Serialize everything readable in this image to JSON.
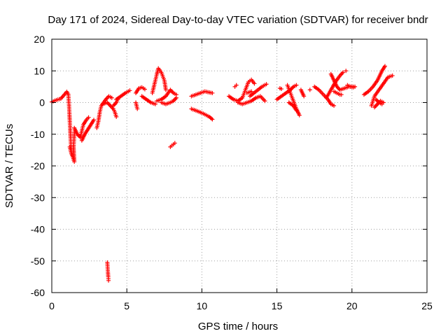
{
  "chart_data": {
    "type": "scatter",
    "title": "Day 171 of 2024, Sidereal Day-to-day VTEC variation (SDTVAR) for receiver bndr",
    "xlabel": "GPS time / hours",
    "ylabel": "SDTVAR / TECUs",
    "xlim": [
      0,
      25
    ],
    "ylim": [
      -60,
      20
    ],
    "xticks": [
      0,
      5,
      10,
      15,
      20,
      25
    ],
    "yticks": [
      -60,
      -50,
      -40,
      -30,
      -20,
      -10,
      0,
      10,
      20
    ],
    "grid": true,
    "marker": "+",
    "series": [
      {
        "name": "SDTVAR",
        "color": "#ff0000",
        "tracks": [
          [
            [
              0.0,
              0.2
            ],
            [
              0.3,
              0.8
            ],
            [
              0.6,
              1.2
            ],
            [
              0.8,
              2.3
            ],
            [
              1.0,
              3.4
            ],
            [
              1.1,
              2.6
            ],
            [
              1.15,
              -1.0
            ],
            [
              1.2,
              -6.0
            ],
            [
              1.25,
              -11.0
            ],
            [
              1.3,
              -15.5
            ]
          ],
          [
            [
              1.2,
              -14.0
            ],
            [
              1.3,
              -16.0
            ],
            [
              1.4,
              -17.2
            ],
            [
              1.5,
              -18.7
            ],
            [
              1.45,
              -14.0
            ],
            [
              1.5,
              -10.0
            ],
            [
              1.55,
              -9.0
            ]
          ],
          [
            [
              1.5,
              -8.0
            ],
            [
              1.7,
              -10.0
            ],
            [
              1.9,
              -11.0
            ],
            [
              2.0,
              -9.0
            ],
            [
              2.1,
              -7.0
            ],
            [
              2.3,
              -5.5
            ],
            [
              2.45,
              -4.7
            ]
          ],
          [
            [
              2.0,
              -12.0
            ],
            [
              2.2,
              -10.0
            ],
            [
              2.4,
              -8.5
            ],
            [
              2.6,
              -7.0
            ],
            [
              2.8,
              -5.5
            ]
          ],
          [
            [
              3.0,
              -8.0
            ],
            [
              3.1,
              -6.0
            ],
            [
              3.2,
              -3.0
            ],
            [
              3.3,
              -1.0
            ],
            [
              3.6,
              1.0
            ],
            [
              3.8,
              2.0
            ],
            [
              4.0,
              1.5
            ]
          ],
          [
            [
              3.4,
              -0.5
            ],
            [
              3.7,
              0.0
            ],
            [
              3.9,
              -1.0
            ],
            [
              4.1,
              -2.0
            ],
            [
              4.2,
              -3.0
            ],
            [
              4.3,
              -4.5
            ]
          ],
          [
            [
              3.7,
              -50.5
            ],
            [
              3.72,
              -52.0
            ],
            [
              3.74,
              -53.5
            ],
            [
              3.76,
              -55.0
            ],
            [
              3.78,
              -56.2
            ]
          ],
          [
            [
              4.3,
              1.0
            ],
            [
              4.6,
              2.0
            ],
            [
              4.9,
              3.0
            ],
            [
              5.2,
              3.8
            ]
          ],
          [
            [
              4.1,
              -1.0
            ],
            [
              4.3,
              0.0
            ],
            [
              4.4,
              1.0
            ]
          ],
          [
            [
              5.6,
              3.0
            ],
            [
              5.8,
              4.5
            ],
            [
              6.0,
              4.8
            ],
            [
              6.2,
              4.2
            ]
          ],
          [
            [
              5.6,
              0.0
            ],
            [
              5.65,
              -1.0
            ],
            [
              5.7,
              -2.0
            ]
          ],
          [
            [
              6.0,
              2.0
            ],
            [
              6.3,
              1.0
            ],
            [
              6.6,
              0.0
            ],
            [
              6.9,
              -0.5
            ]
          ],
          [
            [
              6.7,
              3.0
            ],
            [
              6.85,
              6.0
            ],
            [
              7.0,
              9.0
            ],
            [
              7.1,
              10.8
            ],
            [
              7.3,
              9.5
            ],
            [
              7.5,
              7.0
            ],
            [
              7.6,
              4.0
            ]
          ],
          [
            [
              7.0,
              0.5
            ],
            [
              7.3,
              1.0
            ],
            [
              7.6,
              2.0
            ],
            [
              7.9,
              4.0
            ],
            [
              8.1,
              3.0
            ],
            [
              8.3,
              2.5
            ]
          ],
          [
            [
              7.3,
              0.0
            ],
            [
              7.6,
              -0.5
            ],
            [
              7.9,
              0.0
            ],
            [
              8.1,
              0.5
            ],
            [
              8.3,
              1.5
            ]
          ],
          [
            [
              7.9,
              -14.0
            ],
            [
              8.0,
              -13.6
            ],
            [
              8.1,
              -13.2
            ],
            [
              8.2,
              -12.8
            ]
          ],
          [
            [
              9.3,
              2.0
            ],
            [
              9.6,
              2.5
            ],
            [
              9.9,
              3.0
            ],
            [
              10.2,
              3.5
            ],
            [
              10.5,
              3.2
            ],
            [
              10.7,
              3.0
            ]
          ],
          [
            [
              9.3,
              -2.0
            ],
            [
              9.7,
              -2.7
            ],
            [
              10.1,
              -3.5
            ],
            [
              10.5,
              -4.5
            ],
            [
              10.7,
              -5.3
            ]
          ],
          [
            [
              11.8,
              2.0
            ],
            [
              12.1,
              1.0
            ],
            [
              12.4,
              0.5
            ],
            [
              12.7,
              1.5
            ],
            [
              12.9,
              4.0
            ],
            [
              13.1,
              6.5
            ],
            [
              13.3,
              7.2
            ],
            [
              13.5,
              6.0
            ]
          ],
          [
            [
              12.4,
              0.0
            ],
            [
              12.7,
              -0.5
            ],
            [
              13.0,
              0.0
            ],
            [
              13.3,
              0.5
            ],
            [
              13.6,
              1.5
            ],
            [
              13.9,
              2.0
            ],
            [
              14.2,
              0.5
            ]
          ],
          [
            [
              12.2,
              5.0
            ],
            [
              12.3,
              5.5
            ]
          ],
          [
            [
              13.0,
              3.0
            ],
            [
              13.3,
              3.5
            ]
          ],
          [
            [
              13.2,
              2.0
            ],
            [
              13.6,
              3.5
            ],
            [
              14.0,
              5.0
            ],
            [
              14.3,
              5.8
            ]
          ],
          [
            [
              15.0,
              1.0
            ],
            [
              15.3,
              2.0
            ],
            [
              15.6,
              3.0
            ],
            [
              15.9,
              4.0
            ],
            [
              16.1,
              5.0
            ],
            [
              16.3,
              5.5
            ]
          ],
          [
            [
              15.2,
              4.5
            ],
            [
              15.3,
              4.3
            ]
          ],
          [
            [
              15.7,
              5.5
            ],
            [
              15.9,
              3.0
            ],
            [
              16.1,
              0.5
            ],
            [
              16.3,
              -2.0
            ],
            [
              16.5,
              -4.0
            ]
          ],
          [
            [
              15.8,
              0.0
            ],
            [
              16.1,
              -1.0
            ],
            [
              16.3,
              -2.5
            ]
          ],
          [
            [
              16.6,
              4.0
            ],
            [
              16.8,
              2.0
            ]
          ],
          [
            [
              17.2,
              4.0
            ]
          ],
          [
            [
              17.5,
              5.0
            ],
            [
              17.8,
              4.0
            ],
            [
              18.1,
              2.5
            ],
            [
              18.4,
              1.0
            ],
            [
              18.6,
              -0.5
            ],
            [
              18.8,
              -1.0
            ]
          ],
          [
            [
              18.3,
              1.5
            ],
            [
              18.6,
              4.0
            ],
            [
              18.9,
              6.5
            ],
            [
              19.2,
              8.5
            ],
            [
              19.4,
              9.5
            ]
          ],
          [
            [
              18.6,
              9.0
            ],
            [
              18.8,
              7.0
            ],
            [
              19.0,
              5.0
            ],
            [
              19.2,
              4.0
            ],
            [
              19.5,
              4.5
            ],
            [
              19.8,
              5.0
            ],
            [
              20.2,
              5.0
            ]
          ],
          [
            [
              18.8,
              3.5
            ],
            [
              19.0,
              3.0
            ],
            [
              19.2,
              2.5
            ],
            [
              19.3,
              2.5
            ]
          ],
          [
            [
              19.7,
              5.5
            ],
            [
              19.9,
              5.0
            ],
            [
              20.1,
              4.8
            ]
          ],
          [
            [
              19.6,
              10.0
            ]
          ],
          [
            [
              20.8,
              2.5
            ],
            [
              21.1,
              3.5
            ],
            [
              21.4,
              5.0
            ],
            [
              21.7,
              7.0
            ],
            [
              22.0,
              10.0
            ],
            [
              22.2,
              11.5
            ]
          ],
          [
            [
              21.3,
              -1.0
            ],
            [
              21.5,
              2.0
            ],
            [
              21.8,
              4.0
            ],
            [
              22.1,
              6.0
            ],
            [
              22.4,
              8.0
            ],
            [
              22.7,
              8.5
            ]
          ],
          [
            [
              21.5,
              -1.5
            ],
            [
              21.7,
              -0.5
            ],
            [
              21.9,
              0.5
            ],
            [
              22.1,
              0.0
            ]
          ],
          [
            [
              21.6,
              1.0
            ],
            [
              21.8,
              0.0
            ],
            [
              22.0,
              -0.5
            ]
          ]
        ]
      }
    ]
  }
}
